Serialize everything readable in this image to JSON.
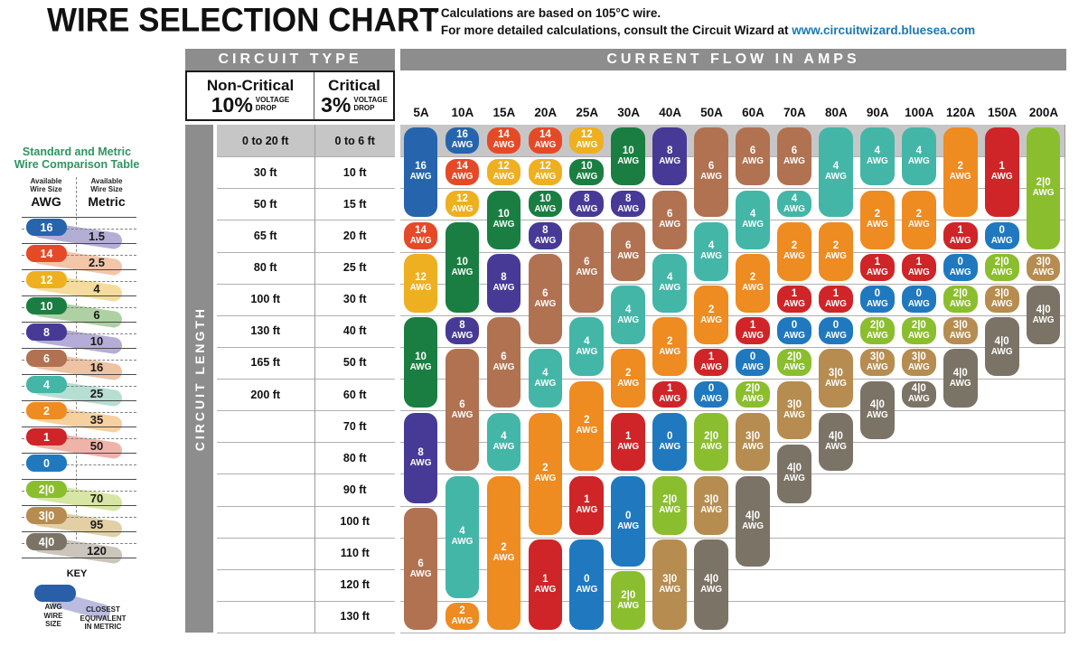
{
  "header": {
    "title": "WIRE SELECTION CHART",
    "bullet": "▪",
    "note_line1": "Calculations are based on 105°C wire.",
    "note_line2_prefix": "For more detailed calculations, consult the Circuit Wizard at ",
    "note_link": "www.circuitwizard.bluesea.com",
    "link_color": "#1779b6"
  },
  "comparison_table": {
    "title_line1": "Standard and Metric",
    "title_line2": "Wire Comparison Table",
    "title_color": "#2e9460",
    "awg_header": [
      "Available",
      "Wire Size",
      "AWG"
    ],
    "metric_header": [
      "Available",
      "Wire Size",
      "Metric"
    ],
    "rows": [
      {
        "awg": "16",
        "metric": "1.5",
        "color": "#2664ae",
        "trail": "#b3aed6"
      },
      {
        "awg": "14",
        "metric": "2.5",
        "color": "#e54a28",
        "trail": "#f3c5a9"
      },
      {
        "awg": "12",
        "metric": "4",
        "color": "#eeb021",
        "trail": "#f5dc9d"
      },
      {
        "awg": "10",
        "metric": "6",
        "color": "#1a7e42",
        "trail": "#aed1a4"
      },
      {
        "awg": "8",
        "metric": "10",
        "color": "#473a97",
        "trail": "#b5add7"
      },
      {
        "awg": "6",
        "metric": "16",
        "color": "#b17252",
        "trail": "#eec3a4"
      },
      {
        "awg": "4",
        "metric": "25",
        "color": "#43b6a8",
        "trail": "#b7ded2"
      },
      {
        "awg": "2",
        "metric": "35",
        "color": "#ee8b21",
        "trail": "#f6d09e"
      },
      {
        "awg": "1",
        "metric": "50",
        "color": "#cf2528",
        "trail": "#f0b3a9"
      },
      {
        "awg": "0",
        "metric": "",
        "color": "#2079bf",
        "trail": ""
      },
      {
        "awg": "2|0",
        "metric": "70",
        "color": "#8bbe2e",
        "trail": "#d8e6a5"
      },
      {
        "awg": "3|0",
        "metric": "95",
        "color": "#b68c50",
        "trail": "#e3cfa6"
      },
      {
        "awg": "4|0",
        "metric": "120",
        "color": "#7b7366",
        "trail": "#cbc5bc"
      }
    ],
    "key": {
      "title": "KEY",
      "pill_color": "#2a5fa8",
      "trail_color": "#b9bcdf",
      "pill_label": [
        "AWG",
        "WIRE",
        "SIZE"
      ],
      "trail_label": [
        "CLOSEST",
        "EQUIVALENT",
        "IN METRIC"
      ]
    }
  },
  "chart": {
    "circuit_type_header": "CIRCUIT TYPE",
    "amps_header": "CURRENT FLOW IN AMPS",
    "non_critical": {
      "name": "Non-Critical",
      "pct": "10%",
      "drop1": "VOLTAGE",
      "drop2": "DROP"
    },
    "critical": {
      "name": "Critical",
      "pct": "3%",
      "drop1": "VOLTAGE",
      "drop2": "DROP"
    },
    "circuit_length_label": "CIRCUIT LENGTH",
    "awg_unit": "AWG",
    "awg_colors": {
      "16": "#2664ae",
      "14": "#e54a28",
      "12": "#eeb021",
      "10": "#1a7e42",
      "8": "#473a97",
      "6": "#b17252",
      "4": "#43b6a8",
      "2": "#ee8b21",
      "1": "#cf2528",
      "0": "#2079bf",
      "2|0": "#8bbe2e",
      "3|0": "#b68c50",
      "4|0": "#7b7366"
    }
  },
  "chart_data": {
    "type": "table",
    "title": "Wire gauge (AWG) selection by current flow and circuit length",
    "x_axis_label": "CURRENT FLOW IN AMPS",
    "y_axis_label": "CIRCUIT LENGTH",
    "x_categories": [
      "5A",
      "10A",
      "15A",
      "20A",
      "25A",
      "30A",
      "40A",
      "50A",
      "60A",
      "70A",
      "80A",
      "90A",
      "100A",
      "120A",
      "150A",
      "200A"
    ],
    "row_labels_non_critical_10pct": [
      "0 to 20 ft",
      "30 ft",
      "50 ft",
      "65 ft",
      "80 ft",
      "100 ft",
      "130 ft",
      "165 ft",
      "200 ft",
      "",
      "",
      "",
      "",
      "",
      "",
      ""
    ],
    "row_labels_critical_3pct": [
      "0 to 6 ft",
      "10 ft",
      "15 ft",
      "20 ft",
      "25 ft",
      "30 ft",
      "40 ft",
      "50 ft",
      "60 ft",
      "70 ft",
      "80 ft",
      "90 ft",
      "100 ft",
      "110 ft",
      "120 ft",
      "130 ft"
    ],
    "columns": [
      {
        "amps": "5A",
        "pills": [
          {
            "awg": "16",
            "from": 1,
            "to": 3
          },
          {
            "awg": "14",
            "from": 4,
            "to": 4
          },
          {
            "awg": "12",
            "from": 5,
            "to": 6
          },
          {
            "awg": "10",
            "from": 7,
            "to": 9
          },
          {
            "awg": "8",
            "from": 10,
            "to": 12
          },
          {
            "awg": "6",
            "from": 13,
            "to": 16
          }
        ]
      },
      {
        "amps": "10A",
        "pills": [
          {
            "awg": "16",
            "from": 1,
            "to": 1
          },
          {
            "awg": "14",
            "from": 2,
            "to": 2
          },
          {
            "awg": "12",
            "from": 3,
            "to": 3
          },
          {
            "awg": "10",
            "from": 4,
            "to": 6
          },
          {
            "awg": "8",
            "from": 7,
            "to": 7
          },
          {
            "awg": "6",
            "from": 8,
            "to": 11
          },
          {
            "awg": "4",
            "from": 12,
            "to": 15
          },
          {
            "awg": "2",
            "from": 16,
            "to": 16
          }
        ]
      },
      {
        "amps": "15A",
        "pills": [
          {
            "awg": "14",
            "from": 1,
            "to": 1
          },
          {
            "awg": "12",
            "from": 2,
            "to": 2
          },
          {
            "awg": "10",
            "from": 3,
            "to": 4
          },
          {
            "awg": "8",
            "from": 5,
            "to": 6
          },
          {
            "awg": "6",
            "from": 7,
            "to": 9
          },
          {
            "awg": "4",
            "from": 10,
            "to": 11
          },
          {
            "awg": "2",
            "from": 12,
            "to": 16
          }
        ]
      },
      {
        "amps": "20A",
        "pills": [
          {
            "awg": "14",
            "from": 1,
            "to": 1
          },
          {
            "awg": "12",
            "from": 2,
            "to": 2
          },
          {
            "awg": "10",
            "from": 3,
            "to": 3
          },
          {
            "awg": "8",
            "from": 4,
            "to": 4
          },
          {
            "awg": "6",
            "from": 5,
            "to": 7
          },
          {
            "awg": "4",
            "from": 8,
            "to": 9
          },
          {
            "awg": "2",
            "from": 10,
            "to": 13
          },
          {
            "awg": "1",
            "from": 14,
            "to": 16
          }
        ]
      },
      {
        "amps": "25A",
        "pills": [
          {
            "awg": "12",
            "from": 1,
            "to": 1
          },
          {
            "awg": "10",
            "from": 2,
            "to": 2
          },
          {
            "awg": "8",
            "from": 3,
            "to": 3
          },
          {
            "awg": "6",
            "from": 4,
            "to": 6
          },
          {
            "awg": "4",
            "from": 7,
            "to": 8
          },
          {
            "awg": "2",
            "from": 9,
            "to": 11
          },
          {
            "awg": "1",
            "from": 12,
            "to": 13
          },
          {
            "awg": "0",
            "from": 14,
            "to": 16
          }
        ]
      },
      {
        "amps": "30A",
        "pills": [
          {
            "awg": "10",
            "from": 1,
            "to": 2
          },
          {
            "awg": "8",
            "from": 3,
            "to": 3
          },
          {
            "awg": "6",
            "from": 4,
            "to": 5
          },
          {
            "awg": "4",
            "from": 6,
            "to": 7
          },
          {
            "awg": "2",
            "from": 8,
            "to": 9
          },
          {
            "awg": "1",
            "from": 10,
            "to": 11
          },
          {
            "awg": "0",
            "from": 12,
            "to": 14
          },
          {
            "awg": "2|0",
            "from": 15,
            "to": 16
          }
        ]
      },
      {
        "amps": "40A",
        "pills": [
          {
            "awg": "8",
            "from": 1,
            "to": 2
          },
          {
            "awg": "6",
            "from": 3,
            "to": 4
          },
          {
            "awg": "4",
            "from": 5,
            "to": 6
          },
          {
            "awg": "2",
            "from": 7,
            "to": 8
          },
          {
            "awg": "1",
            "from": 9,
            "to": 9
          },
          {
            "awg": "0",
            "from": 10,
            "to": 11
          },
          {
            "awg": "2|0",
            "from": 12,
            "to": 13
          },
          {
            "awg": "3|0",
            "from": 14,
            "to": 16
          }
        ]
      },
      {
        "amps": "50A",
        "pills": [
          {
            "awg": "6",
            "from": 1,
            "to": 3
          },
          {
            "awg": "4",
            "from": 4,
            "to": 5
          },
          {
            "awg": "2",
            "from": 6,
            "to": 7
          },
          {
            "awg": "1",
            "from": 8,
            "to": 8
          },
          {
            "awg": "0",
            "from": 9,
            "to": 9
          },
          {
            "awg": "2|0",
            "from": 10,
            "to": 11
          },
          {
            "awg": "3|0",
            "from": 12,
            "to": 13
          },
          {
            "awg": "4|0",
            "from": 14,
            "to": 16
          }
        ]
      },
      {
        "amps": "60A",
        "pills": [
          {
            "awg": "6",
            "from": 1,
            "to": 2
          },
          {
            "awg": "4",
            "from": 3,
            "to": 4
          },
          {
            "awg": "2",
            "from": 5,
            "to": 6
          },
          {
            "awg": "1",
            "from": 7,
            "to": 7
          },
          {
            "awg": "0",
            "from": 8,
            "to": 8
          },
          {
            "awg": "2|0",
            "from": 9,
            "to": 9
          },
          {
            "awg": "3|0",
            "from": 10,
            "to": 11
          },
          {
            "awg": "4|0",
            "from": 12,
            "to": 14
          }
        ]
      },
      {
        "amps": "70A",
        "pills": [
          {
            "awg": "6",
            "from": 1,
            "to": 2
          },
          {
            "awg": "4",
            "from": 3,
            "to": 3
          },
          {
            "awg": "2",
            "from": 4,
            "to": 5
          },
          {
            "awg": "1",
            "from": 6,
            "to": 6
          },
          {
            "awg": "0",
            "from": 7,
            "to": 7
          },
          {
            "awg": "2|0",
            "from": 8,
            "to": 8
          },
          {
            "awg": "3|0",
            "from": 9,
            "to": 10
          },
          {
            "awg": "4|0",
            "from": 11,
            "to": 12
          }
        ]
      },
      {
        "amps": "80A",
        "pills": [
          {
            "awg": "4",
            "from": 1,
            "to": 3
          },
          {
            "awg": "2",
            "from": 4,
            "to": 5
          },
          {
            "awg": "1",
            "from": 6,
            "to": 6
          },
          {
            "awg": "0",
            "from": 7,
            "to": 7
          },
          {
            "awg": "3|0",
            "from": 8,
            "to": 9
          },
          {
            "awg": "4|0",
            "from": 10,
            "to": 11
          }
        ]
      },
      {
        "amps": "90A",
        "pills": [
          {
            "awg": "4",
            "from": 1,
            "to": 2
          },
          {
            "awg": "2",
            "from": 3,
            "to": 4
          },
          {
            "awg": "1",
            "from": 5,
            "to": 5
          },
          {
            "awg": "0",
            "from": 6,
            "to": 6
          },
          {
            "awg": "2|0",
            "from": 7,
            "to": 7
          },
          {
            "awg": "3|0",
            "from": 8,
            "to": 8
          },
          {
            "awg": "4|0",
            "from": 9,
            "to": 10
          }
        ]
      },
      {
        "amps": "100A",
        "pills": [
          {
            "awg": "4",
            "from": 1,
            "to": 2
          },
          {
            "awg": "2",
            "from": 3,
            "to": 4
          },
          {
            "awg": "1",
            "from": 5,
            "to": 5
          },
          {
            "awg": "0",
            "from": 6,
            "to": 6
          },
          {
            "awg": "2|0",
            "from": 7,
            "to": 7
          },
          {
            "awg": "3|0",
            "from": 8,
            "to": 8
          },
          {
            "awg": "4|0",
            "from": 9,
            "to": 9
          }
        ]
      },
      {
        "amps": "120A",
        "pills": [
          {
            "awg": "2",
            "from": 1,
            "to": 3
          },
          {
            "awg": "1",
            "from": 4,
            "to": 4
          },
          {
            "awg": "0",
            "from": 5,
            "to": 5
          },
          {
            "awg": "2|0",
            "from": 6,
            "to": 6
          },
          {
            "awg": "3|0",
            "from": 7,
            "to": 7
          },
          {
            "awg": "4|0",
            "from": 8,
            "to": 9
          }
        ]
      },
      {
        "amps": "150A",
        "pills": [
          {
            "awg": "1",
            "from": 1,
            "to": 3
          },
          {
            "awg": "0",
            "from": 4,
            "to": 4
          },
          {
            "awg": "2|0",
            "from": 5,
            "to": 5
          },
          {
            "awg": "3|0",
            "from": 6,
            "to": 6
          },
          {
            "awg": "4|0",
            "from": 7,
            "to": 8
          }
        ]
      },
      {
        "amps": "200A",
        "pills": [
          {
            "awg": "2|0",
            "from": 1,
            "to": 4
          },
          {
            "awg": "3|0",
            "from": 5,
            "to": 5
          },
          {
            "awg": "4|0",
            "from": 6,
            "to": 7
          }
        ]
      }
    ]
  }
}
